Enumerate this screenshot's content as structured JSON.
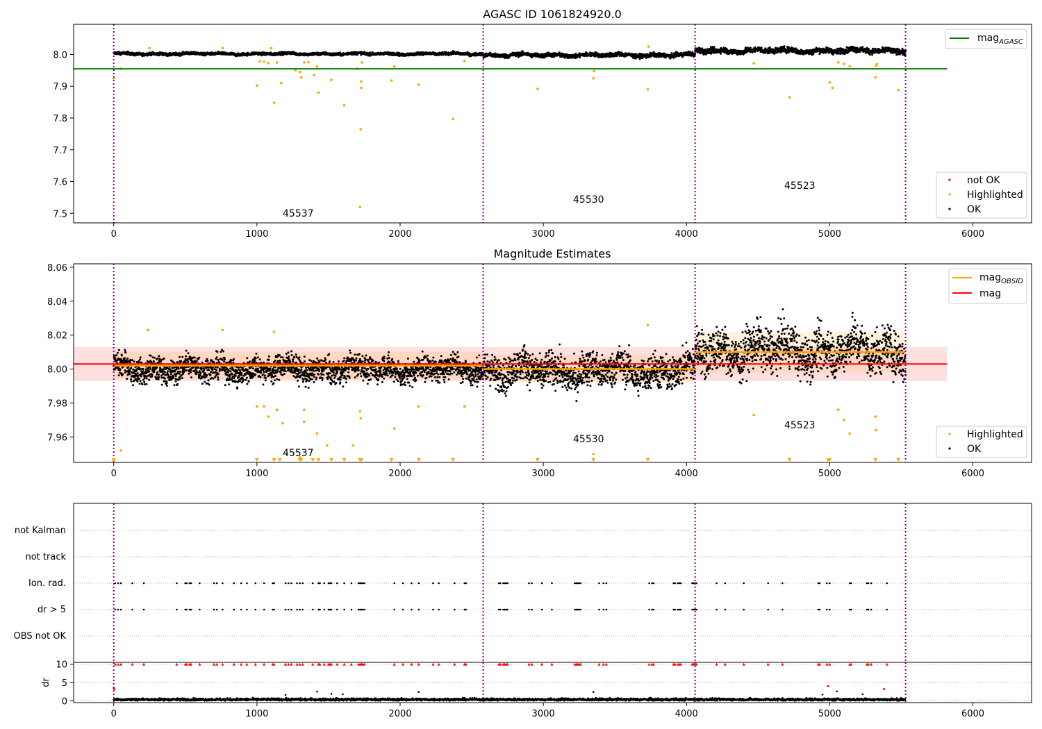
{
  "chart_data": [
    {
      "type": "scatter",
      "title": "AGASC ID 1061824920.0",
      "xlim": [
        -280,
        6410
      ],
      "ylim": [
        7.47,
        8.095
      ],
      "xticks": [
        0,
        1000,
        2000,
        3000,
        4000,
        5000,
        6000
      ],
      "xtick_labels": [
        "0",
        "1000",
        "2000",
        "3000",
        "4000",
        "5000",
        "6000"
      ],
      "yticks": [
        7.5,
        7.6,
        7.7,
        7.8,
        7.9,
        8.0
      ],
      "ytick_labels": [
        "7.5",
        "7.6",
        "7.7",
        "7.8",
        "7.9",
        "8.0"
      ],
      "obs_boundaries": [
        0,
        2580,
        4060,
        5530
      ],
      "series": [
        {
          "name": "not OK",
          "color": "#ff0000",
          "marker": "dot",
          "points": []
        },
        {
          "name": "Highlighted",
          "color": "#ffa500",
          "marker": "dot",
          "points": [
            [
              0,
              7.925
            ],
            [
              50,
              7.955
            ],
            [
              250,
              8.02
            ],
            [
              760,
              8.02
            ],
            [
              1000,
              7.902
            ],
            [
              1020,
              7.978
            ],
            [
              1050,
              7.977
            ],
            [
              1080,
              7.973
            ],
            [
              1100,
              8.02
            ],
            [
              1120,
              7.848
            ],
            [
              1140,
              7.975
            ],
            [
              1170,
              7.91
            ],
            [
              1270,
              7.95
            ],
            [
              1300,
              7.945
            ],
            [
              1310,
              7.928
            ],
            [
              1330,
              7.975
            ],
            [
              1360,
              7.976
            ],
            [
              1400,
              7.935
            ],
            [
              1420,
              7.962
            ],
            [
              1430,
              7.88
            ],
            [
              1520,
              7.92
            ],
            [
              1610,
              7.84
            ],
            [
              1700,
              7.955
            ],
            [
              1720,
              7.52
            ],
            [
              1725,
              7.765
            ],
            [
              1728,
              7.915
            ],
            [
              1730,
              7.895
            ],
            [
              1735,
              7.975
            ],
            [
              1940,
              7.918
            ],
            [
              1960,
              7.962
            ],
            [
              2130,
              7.905
            ],
            [
              2370,
              7.797
            ],
            [
              2450,
              7.98
            ],
            [
              2960,
              7.892
            ],
            [
              3350,
              7.925
            ],
            [
              3355,
              7.948
            ],
            [
              3730,
              7.89
            ],
            [
              3735,
              8.025
            ],
            [
              4470,
              7.972
            ],
            [
              4720,
              7.865
            ],
            [
              5000,
              7.912
            ],
            [
              5020,
              7.895
            ],
            [
              5060,
              7.975
            ],
            [
              5100,
              7.97
            ],
            [
              5140,
              7.963
            ],
            [
              5320,
              7.928
            ],
            [
              5325,
              7.965
            ],
            [
              5330,
              7.97
            ],
            [
              5480,
              7.888
            ]
          ]
        },
        {
          "name": "OK",
          "color": "#000000",
          "marker": "dot"
        }
      ],
      "hlines": [
        {
          "name": "mag_AGASC",
          "value": 7.955,
          "color": "#008000",
          "xmin": -280,
          "xmax": 5820
        }
      ],
      "segments": [
        {
          "x0": 0,
          "x1": 2580,
          "base": 8.002,
          "amp": 0.006
        },
        {
          "x0": 2580,
          "x1": 4060,
          "base": 7.998,
          "amp": 0.009
        },
        {
          "x0": 4060,
          "x1": 5530,
          "base": 8.012,
          "amp": 0.012
        }
      ],
      "annotations": [
        {
          "text": "45537",
          "x": 1290,
          "y": 7.497
        },
        {
          "text": "45530",
          "x": 3310,
          "y": 7.54
        },
        {
          "text": "45523",
          "x": 4790,
          "y": 7.583
        }
      ],
      "legend": {
        "position": "upper right",
        "entries": [
          "mag_AGASC"
        ]
      },
      "legend2": {
        "position": "lower right",
        "entries": [
          "not OK",
          "Highlighted",
          "OK"
        ]
      }
    },
    {
      "type": "scatter",
      "title": "Magnitude Estimates",
      "xlim": [
        -280,
        6410
      ],
      "ylim": [
        7.945,
        8.062
      ],
      "xticks": [
        0,
        1000,
        2000,
        3000,
        4000,
        5000,
        6000
      ],
      "xtick_labels": [
        "0",
        "1000",
        "2000",
        "3000",
        "4000",
        "5000",
        "6000"
      ],
      "yticks": [
        7.96,
        7.98,
        8.0,
        8.02,
        8.04,
        8.06
      ],
      "ytick_labels": [
        "7.96",
        "7.98",
        "8.00",
        "8.02",
        "8.04",
        "8.06"
      ],
      "obs_boundaries": [
        0,
        2580,
        4060,
        5530
      ],
      "mag": {
        "value": 8.003,
        "band": [
          7.993,
          8.013
        ],
        "xmin": -280,
        "xmax": 5820,
        "color": "#ff0000"
      },
      "mag_obsid": [
        {
          "x0": 0,
          "x1": 2580,
          "value": 8.002,
          "band": [
            7.994,
            8.01
          ]
        },
        {
          "x0": 2580,
          "x1": 4060,
          "value": 8.0,
          "band": [
            7.992,
            8.008
          ]
        },
        {
          "x0": 4060,
          "x1": 5530,
          "value": 8.01,
          "band": [
            7.998,
            8.022
          ]
        }
      ],
      "segments": [
        {
          "x0": 0,
          "x1": 2580,
          "base": 8.0,
          "amp": 0.008
        },
        {
          "x0": 2580,
          "x1": 4060,
          "base": 7.999,
          "amp": 0.011
        },
        {
          "x0": 4060,
          "x1": 5530,
          "base": 8.011,
          "amp": 0.014
        }
      ],
      "highlighted": [
        [
          0,
          7.946
        ],
        [
          50,
          7.952
        ],
        [
          240,
          8.023
        ],
        [
          760,
          8.023
        ],
        [
          1000,
          7.978
        ],
        [
          1050,
          7.978
        ],
        [
          1080,
          7.972
        ],
        [
          1120,
          8.022
        ],
        [
          1140,
          7.976
        ],
        [
          1180,
          7.968
        ],
        [
          1300,
          7.948
        ],
        [
          1330,
          7.976
        ],
        [
          1330,
          7.969
        ],
        [
          1420,
          7.962
        ],
        [
          1490,
          7.955
        ],
        [
          1670,
          7.955
        ],
        [
          1720,
          7.975
        ],
        [
          1725,
          7.971
        ],
        [
          1960,
          7.965
        ],
        [
          2130,
          7.978
        ],
        [
          2450,
          7.978
        ],
        [
          3350,
          7.95
        ],
        [
          3730,
          8.026
        ],
        [
          4470,
          7.973
        ],
        [
          5060,
          7.976
        ],
        [
          5100,
          7.97
        ],
        [
          5140,
          7.962
        ],
        [
          5320,
          7.972
        ],
        [
          5325,
          7.964
        ]
      ],
      "below_range_markers": [
        0,
        1000,
        1120,
        1160,
        1300,
        1310,
        1390,
        1430,
        1520,
        1610,
        1720,
        1730,
        1940,
        2130,
        2370,
        2960,
        3350,
        3730,
        4720,
        4990,
        5000,
        5320,
        5480
      ],
      "series": [
        {
          "name": "mag_OBSID",
          "color": "#ffa500"
        },
        {
          "name": "mag",
          "color": "#ff0000"
        },
        {
          "name": "Highlighted",
          "color": "#ffa500"
        },
        {
          "name": "OK",
          "color": "#000000"
        }
      ],
      "annotations": [
        {
          "text": "45537",
          "x": 1290,
          "y": 7.948
        },
        {
          "text": "45530",
          "x": 3310,
          "y": 7.956
        },
        {
          "text": "45523",
          "x": 4790,
          "y": 7.965
        }
      ],
      "legend": {
        "position": "upper right",
        "entries": [
          "mag_OBSID",
          "mag"
        ]
      },
      "legend2": {
        "position": "lower right",
        "entries": [
          "Highlighted",
          "OK"
        ]
      }
    },
    {
      "type": "scatter",
      "title": "",
      "categories": [
        "not Kalman",
        "not track",
        "Ion. rad.",
        "dr > 5",
        "OBS not OK"
      ],
      "xlim": [
        -280,
        6410
      ],
      "obs_boundaries": [
        0,
        2580,
        4060,
        5530
      ],
      "flag_x": [
        10,
        30,
        50,
        130,
        210,
        440,
        500,
        510,
        530,
        540,
        600,
        700,
        720,
        760,
        840,
        890,
        930,
        990,
        1050,
        1110,
        1120,
        1200,
        1220,
        1240,
        1280,
        1300,
        1320,
        1390,
        1430,
        1440,
        1470,
        1500,
        1510,
        1520,
        1560,
        1610,
        1660,
        1710,
        1720,
        1730,
        1740,
        1750,
        1960,
        2020,
        2080,
        2130,
        2230,
        2270,
        2380,
        2450,
        2460,
        2690,
        2700,
        2720,
        2730,
        2740,
        2750,
        2900,
        2920,
        2990,
        3060,
        3220,
        3230,
        3240,
        3250,
        3260,
        3390,
        3420,
        3440,
        3740,
        3760,
        3770,
        3910,
        3920,
        3940,
        3950,
        3960,
        4040,
        4050,
        4060,
        4070,
        4210,
        4270,
        4400,
        4570,
        4670,
        4920,
        4930,
        4980,
        5000,
        5140,
        5150,
        5260,
        5270,
        5290,
        5400
      ]
    },
    {
      "type": "scatter",
      "title": "",
      "ylabel": "dr",
      "xlim": [
        -280,
        6410
      ],
      "ylim": [
        -0.5,
        10.5
      ],
      "xticks": [
        0,
        1000,
        2000,
        3000,
        4000,
        5000,
        6000
      ],
      "xtick_labels": [
        "0",
        "1000",
        "2000",
        "3000",
        "4000",
        "5000",
        "6000"
      ],
      "yticks": [
        0,
        5,
        10
      ],
      "ytick_labels": [
        "0",
        "5",
        "10"
      ],
      "obs_boundaries": [
        0,
        2580,
        4060,
        5530
      ],
      "dr_red": [
        [
          0,
          3.5
        ],
        [
          5,
          3.2
        ],
        [
          4990,
          4.0
        ],
        [
          5380,
          3.2
        ]
      ],
      "dr_spikes": [
        [
          1200,
          1.6
        ],
        [
          1420,
          2.5
        ],
        [
          1520,
          1.9
        ],
        [
          1600,
          1.8
        ],
        [
          2130,
          2.4
        ],
        [
          3350,
          2.4
        ],
        [
          4950,
          1.7
        ],
        [
          5050,
          2.6
        ],
        [
          5230,
          1.8
        ]
      ]
    }
  ]
}
